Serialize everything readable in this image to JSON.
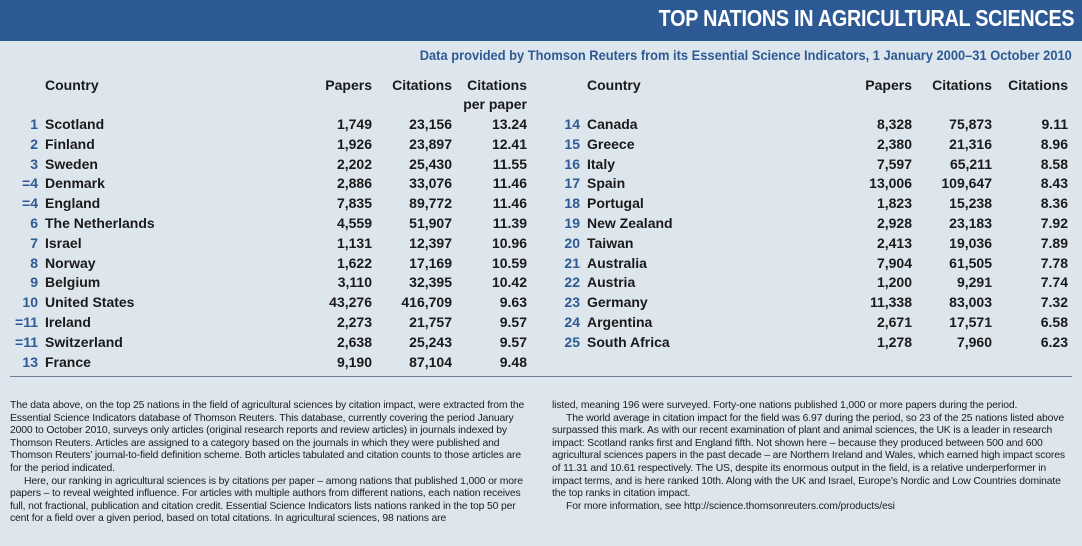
{
  "title": "TOP NATIONS IN AGRICULTURAL SCIENCES",
  "subtitle": "Data provided by Thomson Reuters from its Essential Science Indicators, 1 January 2000–31 October 2010",
  "left_headers": {
    "country": "Country",
    "papers": "Papers",
    "citations": "Citations",
    "cpp_line1": "Citations",
    "cpp_line2": "per paper"
  },
  "right_headers": {
    "country": "Country",
    "papers": "Papers",
    "citations": "Citations",
    "cpp": "Citations"
  },
  "left_rows": [
    {
      "rank": "1",
      "country": "Scotland",
      "papers": "1,749",
      "citations": "23,156",
      "cpp": "13.24"
    },
    {
      "rank": "2",
      "country": "Finland",
      "papers": "1,926",
      "citations": "23,897",
      "cpp": "12.41"
    },
    {
      "rank": "3",
      "country": "Sweden",
      "papers": "2,202",
      "citations": "25,430",
      "cpp": "11.55"
    },
    {
      "rank": "=4",
      "country": "Denmark",
      "papers": "2,886",
      "citations": "33,076",
      "cpp": "11.46"
    },
    {
      "rank": "=4",
      "country": "England",
      "papers": "7,835",
      "citations": "89,772",
      "cpp": "11.46"
    },
    {
      "rank": "6",
      "country": "The Netherlands",
      "papers": "4,559",
      "citations": "51,907",
      "cpp": "11.39"
    },
    {
      "rank": "7",
      "country": "Israel",
      "papers": "1,131",
      "citations": "12,397",
      "cpp": "10.96"
    },
    {
      "rank": "8",
      "country": "Norway",
      "papers": "1,622",
      "citations": "17,169",
      "cpp": "10.59"
    },
    {
      "rank": "9",
      "country": "Belgium",
      "papers": "3,110",
      "citations": "32,395",
      "cpp": "10.42"
    },
    {
      "rank": "10",
      "country": "United States",
      "papers": "43,276",
      "citations": "416,709",
      "cpp": "9.63"
    },
    {
      "rank": "=11",
      "country": "Ireland",
      "papers": "2,273",
      "citations": "21,757",
      "cpp": "9.57"
    },
    {
      "rank": "=11",
      "country": "Switzerland",
      "papers": "2,638",
      "citations": "25,243",
      "cpp": "9.57"
    },
    {
      "rank": "13",
      "country": "France",
      "papers": "9,190",
      "citations": "87,104",
      "cpp": "9.48"
    }
  ],
  "right_rows": [
    {
      "rank": "14",
      "country": "Canada",
      "papers": "8,328",
      "citations": "75,873",
      "cpp": "9.11"
    },
    {
      "rank": "15",
      "country": "Greece",
      "papers": "2,380",
      "citations": "21,316",
      "cpp": "8.96"
    },
    {
      "rank": "16",
      "country": "Italy",
      "papers": "7,597",
      "citations": "65,211",
      "cpp": "8.58"
    },
    {
      "rank": "17",
      "country": "Spain",
      "papers": "13,006",
      "citations": "109,647",
      "cpp": "8.43"
    },
    {
      "rank": "18",
      "country": "Portugal",
      "papers": "1,823",
      "citations": "15,238",
      "cpp": "8.36"
    },
    {
      "rank": "19",
      "country": "New Zealand",
      "papers": "2,928",
      "citations": "23,183",
      "cpp": "7.92"
    },
    {
      "rank": "20",
      "country": "Taiwan",
      "papers": "2,413",
      "citations": "19,036",
      "cpp": "7.89"
    },
    {
      "rank": "21",
      "country": "Australia",
      "papers": "7,904",
      "citations": "61,505",
      "cpp": "7.78"
    },
    {
      "rank": "22",
      "country": "Austria",
      "papers": "1,200",
      "citations": "9,291",
      "cpp": "7.74"
    },
    {
      "rank": "23",
      "country": "Germany",
      "papers": "11,338",
      "citations": "83,003",
      "cpp": "7.32"
    },
    {
      "rank": "24",
      "country": "Argentina",
      "papers": "2,671",
      "citations": "17,571",
      "cpp": "6.58"
    },
    {
      "rank": "25",
      "country": "South Africa",
      "papers": "1,278",
      "citations": "7,960",
      "cpp": "6.23"
    }
  ],
  "body_left": [
    "The data above, on the top 25 nations in the field of agricultural sciences by citation impact, were extracted from the Essential Science Indicators database of Thomson Reuters. This database, currently covering the period January 2000 to October 2010, surveys only articles (original research reports and review articles) in journals indexed by Thomson Reuters. Articles are assigned to a category based on the journals in which they were published and Thomson Reuters’ journal-to-field definition scheme. Both articles tabulated and citation counts to those articles are for the period indicated.",
    "Here, our ranking in agricultural sciences is by citations per paper – among nations that published 1,000 or more papers – to reveal weighted influence. For articles with multiple authors from different nations, each nation receives full, not fractional, publication and citation credit. Essential Science Indicators lists nations ranked in the top 50 per cent for a field over a given period, based on total citations. In agricultural sciences, 98 nations are"
  ],
  "body_right": [
    "listed, meaning 196 were surveyed. Forty-one nations published 1,000 or more papers during the period.",
    "The world average in citation impact for the field was 6.97 during the period, so 23 of the 25 nations listed above surpassed this mark. As with our recent examination of plant and animal sciences, the UK is a leader in research impact: Scotland ranks first and England fifth. Not shown here – because they produced between 500 and 600 agricultural sciences papers in the past decade – are Northern Ireland and Wales, which earned high impact scores of 11.31 and 10.61 respectively. The US, despite its enormous output in the field, is a relative underperformer in impact terms, and is here ranked 10th. Along with the UK and Israel, Europe’s Nordic and Low Countries dominate the top ranks in citation impact.",
    "For more information, see http://science.thomsonreuters.com/products/esi"
  ],
  "colors": {
    "banner": "#2d5a94",
    "background": "#dde5ed",
    "rank": "#2d5a94"
  }
}
